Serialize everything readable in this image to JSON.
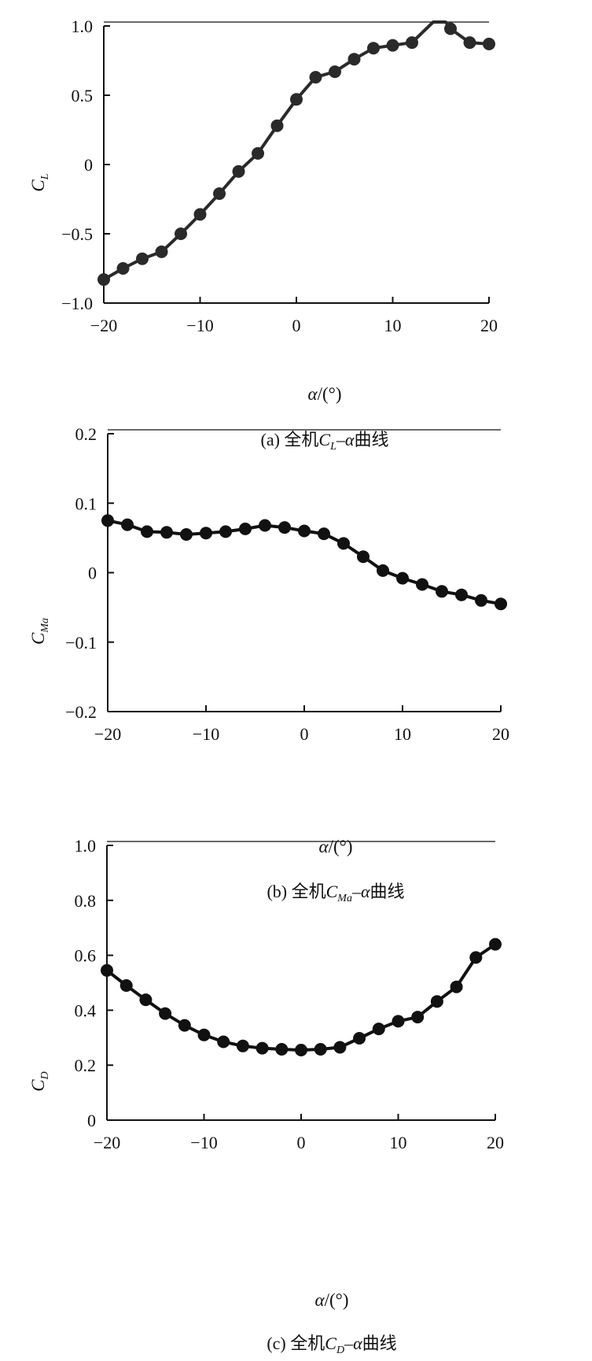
{
  "chart_data": [
    {
      "type": "line",
      "panel": "a",
      "x": [
        -20,
        -18,
        -16,
        -14,
        -12,
        -10,
        -8,
        -6,
        -4,
        -2,
        0,
        2,
        4,
        6,
        8,
        10,
        12,
        16,
        18,
        20
      ],
      "series": [
        {
          "values": [
            -0.83,
            -0.75,
            -0.68,
            -0.63,
            -0.5,
            -0.36,
            -0.21,
            -0.05,
            0.08,
            0.28,
            0.47,
            0.63,
            0.67,
            0.76,
            0.84,
            0.86,
            0.88,
            0.98,
            0.88,
            0.87
          ]
        }
      ],
      "xticks": [
        "−20",
        "−10",
        "0",
        "10",
        "20"
      ],
      "yticks": [
        "−1.0",
        "−0.5",
        "0",
        "0.5",
        "1.0"
      ],
      "xlim": [
        -20,
        20
      ],
      "ylim": [
        -1.0,
        1.0
      ],
      "ylabel_main": "C",
      "ylabel_sub": "L",
      "xlabel_main": "α",
      "xlabel_rest": "/(°)",
      "caption_prefix": "(a) 全机",
      "caption_c": "C",
      "caption_sub": "L",
      "caption_dash": "–",
      "caption_alpha": "α",
      "caption_suffix": "曲线",
      "grid": false,
      "marker": "filled-circle",
      "line_color": "#2a2a2a"
    },
    {
      "type": "line",
      "panel": "b",
      "x": [
        -20,
        -18,
        -16,
        -14,
        -12,
        -10,
        -8,
        -6,
        -4,
        -2,
        0,
        2,
        4,
        6,
        8,
        10,
        12,
        14,
        16,
        18,
        20
      ],
      "series": [
        {
          "values": [
            0.075,
            0.069,
            0.059,
            0.058,
            0.055,
            0.057,
            0.059,
            0.063,
            0.068,
            0.065,
            0.06,
            0.056,
            0.042,
            0.023,
            0.003,
            -0.008,
            -0.017,
            -0.027,
            -0.032,
            -0.04,
            -0.045
          ]
        }
      ],
      "xticks": [
        "−20",
        "−10",
        "0",
        "10",
        "20"
      ],
      "yticks": [
        "−0.2",
        "−0.1",
        "0",
        "0.1",
        "0.2"
      ],
      "xlim": [
        -20,
        20
      ],
      "ylim": [
        -0.2,
        0.2
      ],
      "ylabel_main": "C",
      "ylabel_sub": "Ma",
      "xlabel_main": "α",
      "xlabel_rest": "/(°)",
      "caption_prefix": "(b) 全机",
      "caption_c": "C",
      "caption_sub": "Ma",
      "caption_dash": "–",
      "caption_alpha": "α",
      "caption_suffix": "曲线",
      "grid": false,
      "marker": "filled-circle",
      "line_color": "#111111"
    },
    {
      "type": "line",
      "panel": "c",
      "x": [
        -20,
        -18,
        -16,
        -14,
        -12,
        -10,
        -8,
        -6,
        -4,
        -2,
        0,
        2,
        4,
        6,
        8,
        10,
        12,
        14,
        16,
        18,
        20
      ],
      "series": [
        {
          "values": [
            0.545,
            0.49,
            0.438,
            0.388,
            0.345,
            0.31,
            0.285,
            0.27,
            0.262,
            0.258,
            0.255,
            0.258,
            0.265,
            0.298,
            0.332,
            0.36,
            0.375,
            0.432,
            0.485,
            0.592,
            0.64
          ]
        }
      ],
      "xticks": [
        "−20",
        "−10",
        "0",
        "10",
        "20"
      ],
      "yticks": [
        "0",
        "0.2",
        "0.4",
        "0.6",
        "0.8",
        "1.0"
      ],
      "xlim": [
        -20,
        20
      ],
      "ylim": [
        0,
        1.0
      ],
      "ylabel_main": "C",
      "ylabel_sub": "D",
      "xlabel_main": "α",
      "xlabel_rest": "/(°)",
      "caption_prefix": "(c) 全机",
      "caption_c": "C",
      "caption_sub": "D",
      "caption_dash": "–",
      "caption_alpha": "α",
      "caption_suffix": "曲线",
      "grid": false,
      "marker": "filled-circle",
      "line_color": "#111111"
    }
  ]
}
